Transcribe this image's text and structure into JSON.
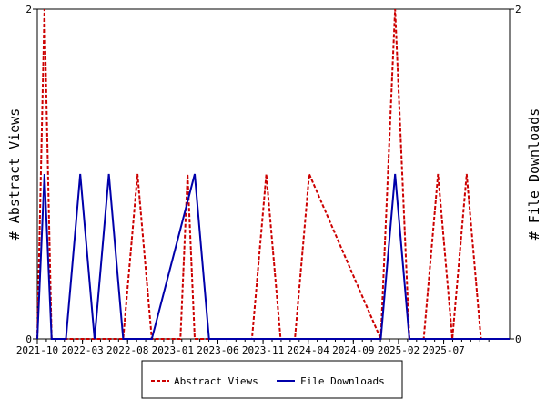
{
  "chart_data": {
    "type": "line",
    "x_tick_labels": [
      "2021-10",
      "2022-03",
      "2022-08",
      "2023-01",
      "2023-06",
      "2023-11",
      "2024-04",
      "2024-09",
      "2025-02",
      "2025-07"
    ],
    "y_left": {
      "label": "# Abstract Views",
      "ticks": [
        "0",
        "2"
      ],
      "range": [
        0,
        2
      ]
    },
    "y_right": {
      "label": "# File Downloads",
      "ticks": [
        "0",
        "2"
      ],
      "range": [
        0,
        2
      ]
    },
    "grid": false,
    "legend_position": "bottom",
    "series": [
      {
        "name": "Abstract Views",
        "color": "#cc0000",
        "style": "dashed",
        "axis": "left",
        "x": [
          0,
          0.25,
          0.5,
          0.75,
          1,
          3,
          4,
          4.5,
          5,
          6,
          7,
          8,
          9,
          9.5,
          10,
          10.5,
          11,
          12,
          14,
          15,
          16,
          17,
          18,
          19,
          24,
          24.5,
          25,
          25.5,
          26,
          27,
          28,
          29,
          30,
          31,
          33
        ],
        "y": [
          0,
          1,
          2,
          1,
          0,
          0,
          0,
          0,
          0,
          0,
          1,
          0,
          0,
          0,
          0,
          1,
          0,
          0,
          0,
          0,
          1,
          0,
          0,
          1,
          0,
          1,
          2,
          1,
          0,
          0,
          1,
          0,
          1,
          0,
          0
        ]
      },
      {
        "name": "File Downloads",
        "color": "#0000aa",
        "style": "solid",
        "axis": "right",
        "x": [
          0,
          0.5,
          1,
          2,
          3,
          4,
          5,
          6,
          7,
          8,
          11,
          12,
          13,
          24,
          25,
          26,
          33
        ],
        "y": [
          0,
          1,
          0,
          0,
          1,
          0,
          1,
          0,
          0,
          0,
          1,
          0,
          0,
          0,
          1,
          0,
          0
        ]
      }
    ],
    "x_range": [
      0,
      33
    ]
  }
}
